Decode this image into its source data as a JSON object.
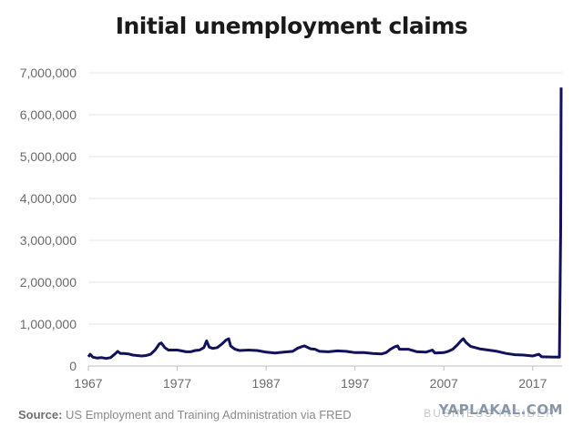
{
  "chart_data": {
    "type": "line",
    "title": "Initial unemployment claims",
    "xlabel": "",
    "ylabel": "",
    "xlim": [
      1967,
      2020.3
    ],
    "ylim": [
      0,
      7000000
    ],
    "x_ticks": [
      1967,
      1977,
      1987,
      1997,
      2007,
      2017
    ],
    "x_tick_labels": [
      "1967",
      "1977",
      "1987",
      "1997",
      "2007",
      "2017"
    ],
    "y_ticks": [
      0,
      1000000,
      2000000,
      3000000,
      4000000,
      5000000,
      6000000,
      7000000
    ],
    "y_tick_labels": [
      "0",
      "1,000,000",
      "2,000,000",
      "3,000,000",
      "4,000,000",
      "5,000,000",
      "6,000,000",
      "7,000,000"
    ],
    "grid": true,
    "color": "#12125c",
    "series": [
      {
        "x": [
          1967.0,
          1967.2,
          1967.5,
          1968.0,
          1968.5,
          1969.0,
          1969.5,
          1970.0,
          1970.3,
          1970.6,
          1971.0,
          1971.5,
          1972.0,
          1972.5,
          1973.0,
          1973.5,
          1974.0,
          1974.5,
          1975.0,
          1975.2,
          1975.6,
          1976.0,
          1976.5,
          1977.0,
          1977.5,
          1978.0,
          1978.5,
          1979.0,
          1979.5,
          1980.0,
          1980.3,
          1980.6,
          1981.0,
          1981.5,
          1982.0,
          1982.5,
          1982.8,
          1983.0,
          1983.5,
          1984.0,
          1985.0,
          1986.0,
          1987.0,
          1988.0,
          1989.0,
          1990.0,
          1990.5,
          1991.0,
          1991.3,
          1992.0,
          1992.5,
          1993.0,
          1994.0,
          1995.0,
          1996.0,
          1997.0,
          1998.0,
          1999.0,
          2000.0,
          2000.5,
          2001.0,
          2001.5,
          2001.8,
          2002.0,
          2003.0,
          2004.0,
          2005.0,
          2005.7,
          2006.0,
          2007.0,
          2007.5,
          2008.0,
          2008.5,
          2009.0,
          2009.2,
          2009.5,
          2010.0,
          2011.0,
          2012.0,
          2013.0,
          2014.0,
          2015.0,
          2016.0,
          2017.0,
          2017.7,
          2018.0,
          2019.0,
          2020.0,
          2020.15,
          2020.2
        ],
        "y": [
          220000,
          280000,
          210000,
          190000,
          200000,
          180000,
          200000,
          290000,
          350000,
          300000,
          300000,
          290000,
          260000,
          250000,
          240000,
          250000,
          280000,
          380000,
          530000,
          550000,
          440000,
          380000,
          380000,
          380000,
          360000,
          340000,
          340000,
          370000,
          380000,
          440000,
          600000,
          450000,
          420000,
          440000,
          520000,
          620000,
          650000,
          480000,
          400000,
          370000,
          380000,
          370000,
          330000,
          310000,
          330000,
          350000,
          420000,
          460000,
          480000,
          410000,
          400000,
          350000,
          340000,
          360000,
          350000,
          320000,
          320000,
          300000,
          290000,
          320000,
          400000,
          460000,
          480000,
          400000,
          400000,
          340000,
          330000,
          380000,
          310000,
          320000,
          350000,
          400000,
          500000,
          620000,
          650000,
          560000,
          470000,
          410000,
          380000,
          350000,
          300000,
          270000,
          260000,
          240000,
          280000,
          220000,
          215000,
          210000,
          3300000,
          6650000
        ]
      }
    ]
  },
  "footer": {
    "source_label": "Source:",
    "source_text": " US Employment and Training Administration via FRED",
    "brand": "BUSINESS INSIDER",
    "watermark": "YAPLAKAL.COM"
  }
}
